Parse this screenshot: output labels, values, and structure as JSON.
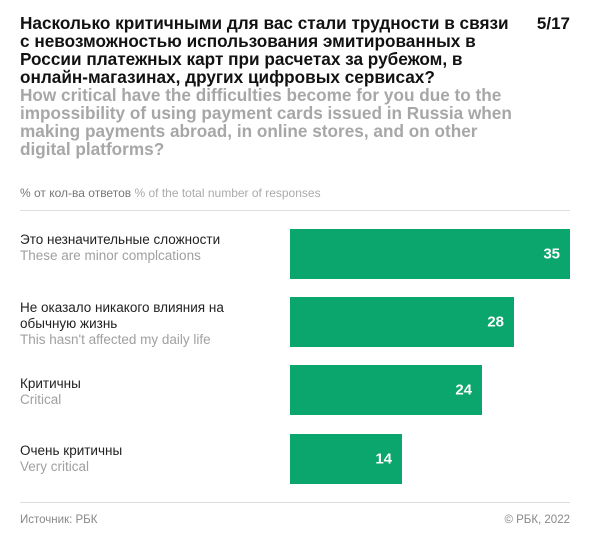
{
  "header": {
    "title_ru": "Насколько критичными для вас стали трудности в связи с невозможностью использования эмитированных в России платежных карт при расчетах за рубежом, в онлайн-магазинах, других цифровых сервисах?",
    "title_en": "How critical have the difficulties become for you due to the impossibility of using payment cards issued in Russia when making payments abroad, in online stores, and on other digital platforms?",
    "page": "5/17"
  },
  "units": {
    "ru": "% от кол-ва ответов",
    "en": "% of the total number of responses"
  },
  "chart_data": {
    "type": "bar",
    "orientation": "horizontal",
    "categories": [
      "Это незначительные сложности / These are minor complcations",
      "Не оказало никакого влияния на обычную жизнь / This hasn't affected my daily life",
      "Критичны / Critical",
      "Очень критичны / Very critical"
    ],
    "labels_ru": [
      "Это незначительные сложности",
      "Не оказало никакого влияния на обычную жизнь",
      "Критичны",
      "Очень критичны"
    ],
    "labels_en": [
      "These are minor complcations",
      "This hasn't affected my daily life",
      "Critical",
      "Very critical"
    ],
    "values": [
      35,
      28,
      24,
      14
    ],
    "value_labels": [
      "35",
      "28",
      "24",
      "14"
    ],
    "xlim": [
      0,
      35
    ],
    "bar_color": "#0aa66e",
    "grid": false,
    "legend": "none"
  },
  "footer": {
    "source": "Источник: РБК",
    "copyright": "© РБК, 2022"
  }
}
